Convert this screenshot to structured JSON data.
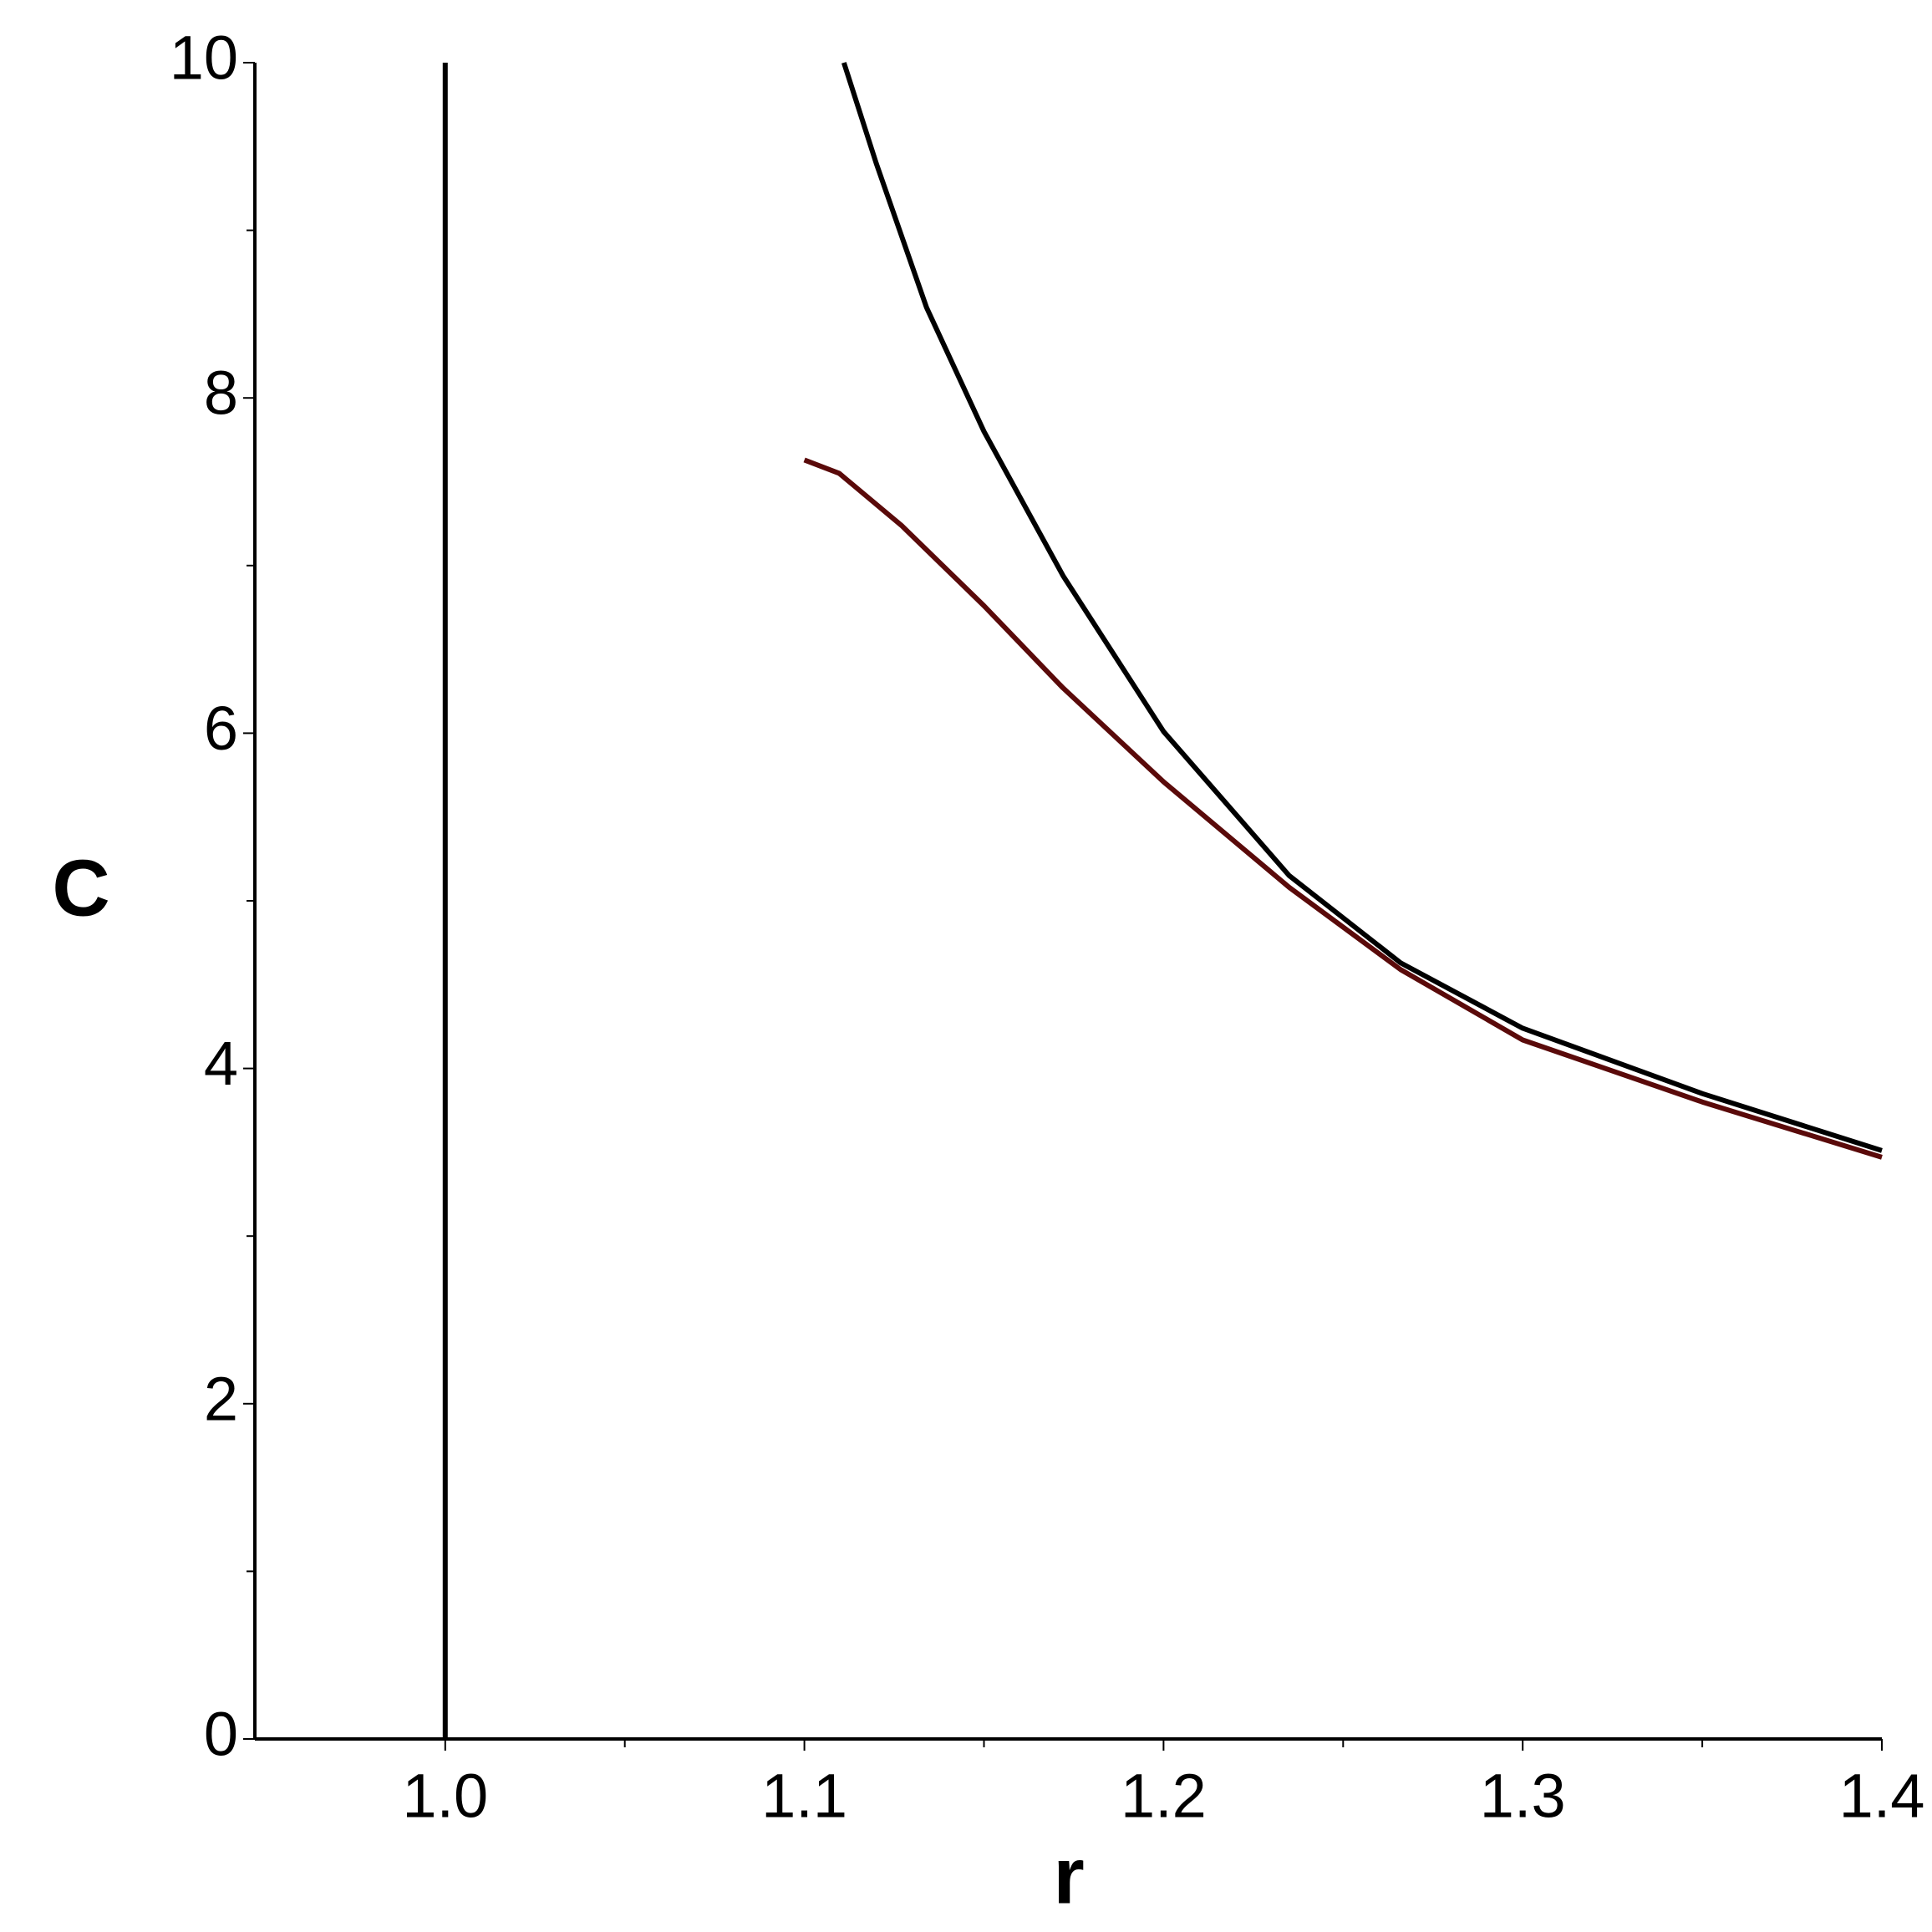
{
  "chart_data": {
    "type": "line",
    "x_label": "r",
    "y_label": "C",
    "xlim": [
      0.947,
      1.4
    ],
    "ylim": [
      0,
      10
    ],
    "xticks": [
      {
        "value": 1,
        "label": "1.0"
      },
      1.1,
      1.2,
      1.3,
      1.4
    ],
    "xticks_minor": [
      1.05,
      1.15,
      1.25,
      1.35
    ],
    "yticks": [
      0,
      2,
      4,
      6,
      8,
      10
    ],
    "yticks_minor": [
      1,
      3,
      5,
      7,
      9
    ],
    "series": [
      {
        "color": "#000000",
        "x": [
          1,
          1
        ],
        "values": [
          0,
          10
        ]
      },
      {
        "color": "#000000",
        "x": [
          1.111,
          1.12,
          1.134,
          1.15,
          1.172,
          1.2,
          1.235,
          1.266,
          1.3,
          1.35,
          1.4
        ],
        "values": [
          10,
          9.4,
          8.54,
          7.8,
          6.94,
          6.01,
          5.15,
          4.63,
          4.24,
          3.85,
          3.51
        ]
      },
      {
        "color": "#5a0a0a",
        "x": [
          1.1,
          1.1097,
          1.127,
          1.15,
          1.172,
          1.2,
          1.235,
          1.266,
          1.3,
          1.35,
          1.4
        ],
        "values": [
          7.63,
          7.55,
          7.24,
          6.76,
          6.27,
          5.71,
          5.08,
          4.59,
          4.17,
          3.8,
          3.47
        ]
      }
    ]
  }
}
